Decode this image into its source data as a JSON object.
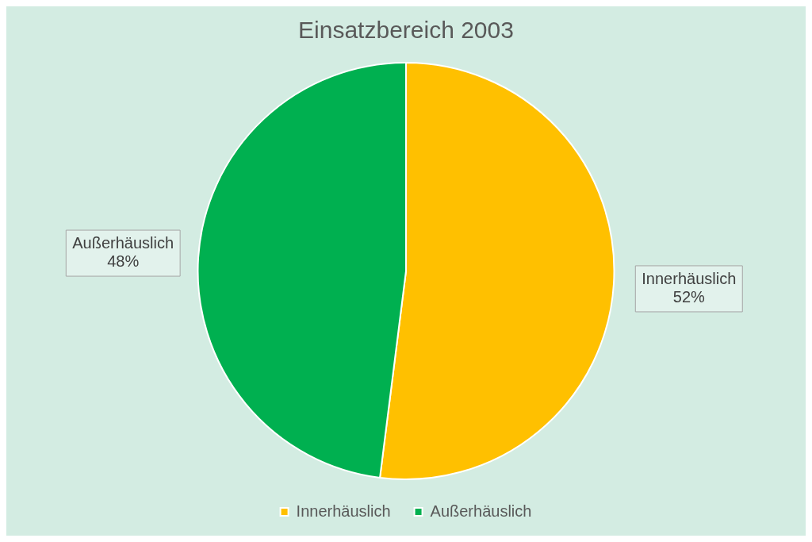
{
  "chart_data": {
    "type": "pie",
    "title": "Einsatzbereich 2003",
    "categories": [
      "Innerhäuslich",
      "Außerhäuslich"
    ],
    "values": [
      52,
      48
    ],
    "value_labels": [
      "52%",
      "48%"
    ],
    "colors": [
      "#ffc000",
      "#00b050"
    ],
    "legend": "bottom"
  }
}
